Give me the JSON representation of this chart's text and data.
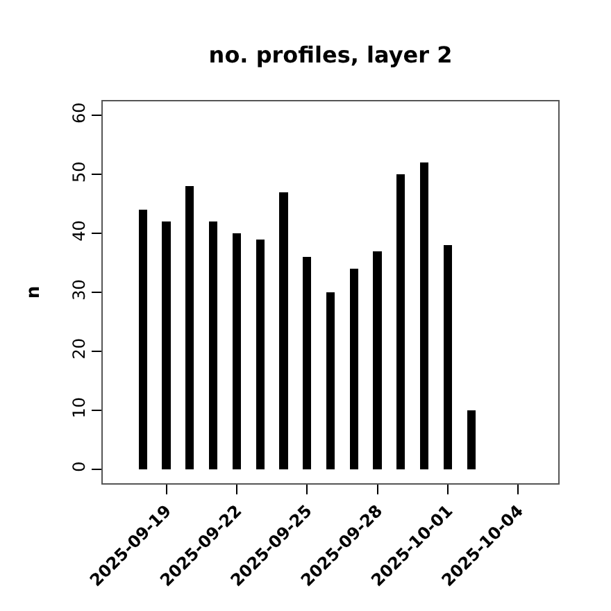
{
  "chart_data": {
    "type": "bar",
    "title": "no. profiles, layer 2",
    "ylabel": "n",
    "x": [
      "2025-09-18",
      "2025-09-19",
      "2025-09-20",
      "2025-09-21",
      "2025-09-22",
      "2025-09-23",
      "2025-09-24",
      "2025-09-25",
      "2025-09-26",
      "2025-09-27",
      "2025-09-28",
      "2025-09-29",
      "2025-09-30",
      "2025-10-01",
      "2025-10-02",
      "2025-10-03",
      "2025-10-04"
    ],
    "values": [
      44,
      42,
      48,
      42,
      40,
      39,
      47,
      36,
      30,
      34,
      37,
      50,
      52,
      38,
      10,
      0,
      0
    ],
    "color": "#000000",
    "xlim": [
      "2025-09-16T07:00",
      "2025-10-05T17:00"
    ],
    "xticks": [
      "2025-09-19",
      "2025-09-22",
      "2025-09-25",
      "2025-09-28",
      "2025-10-01",
      "2025-10-04"
    ],
    "ylim": [
      -2.4,
      62.4
    ],
    "yticks": [
      0,
      10,
      20,
      30,
      40,
      50,
      60
    ]
  }
}
